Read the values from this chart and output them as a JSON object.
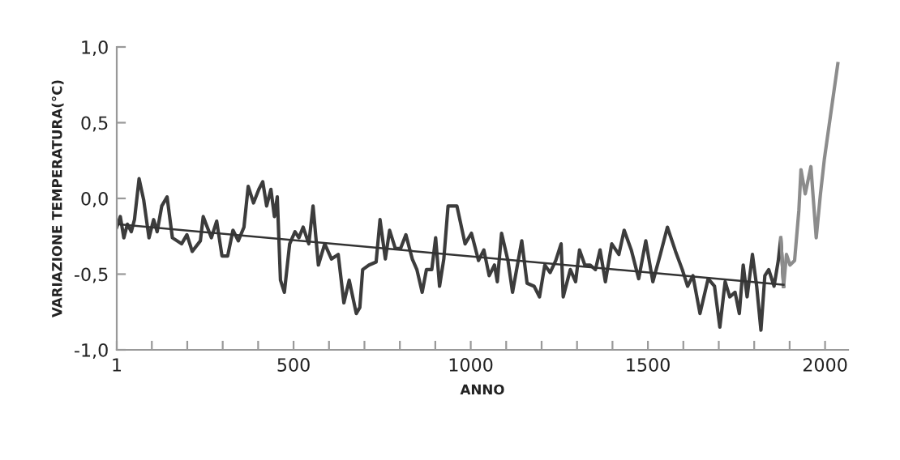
{
  "chart_data": {
    "type": "line",
    "xlabel": "ANNO",
    "ylabel": "VARIAZIONE TEMPERATURA(°C)",
    "xlim": [
      1,
      2065
    ],
    "ylim": [
      -1.0,
      1.0
    ],
    "xticks": [
      1,
      {
        "value": 100,
        "label": null
      },
      {
        "value": 200,
        "label": null
      },
      {
        "value": 300,
        "label": null
      },
      {
        "value": 400,
        "label": null
      },
      500,
      {
        "value": 600,
        "label": null
      },
      {
        "value": 700,
        "label": null
      },
      {
        "value": 800,
        "label": null
      },
      {
        "value": 900,
        "label": null
      },
      1000,
      {
        "value": 1100,
        "label": null
      },
      {
        "value": 1200,
        "label": null
      },
      {
        "value": 1300,
        "label": null
      },
      {
        "value": 1400,
        "label": null
      },
      1500,
      {
        "value": 1600,
        "label": null
      },
      {
        "value": 1700,
        "label": null
      },
      {
        "value": 1800,
        "label": null
      },
      {
        "value": 1900,
        "label": null
      },
      2000
    ],
    "yticks": [
      {
        "value": -1.0,
        "label": "-1,0"
      },
      {
        "value": -0.5,
        "label": "-0,5"
      },
      {
        "value": 0.0,
        "label": "0,0"
      },
      {
        "value": 0.5,
        "label": "0,5"
      },
      {
        "value": 1.0,
        "label": "1,0"
      }
    ],
    "grid": false,
    "marker": "none",
    "line_style": "solid",
    "series": [
      {
        "color": "#3c3c3c",
        "x": [
          1,
          11,
          21,
          31,
          42,
          51,
          64,
          77,
          92,
          105,
          115,
          128,
          143,
          158,
          184,
          199,
          214,
          237,
          245,
          268,
          283,
          298,
          314,
          329,
          344,
          360,
          372,
          387,
          402,
          413,
          424,
          436,
          446,
          454,
          463,
          474,
          489,
          504,
          515,
          527,
          543,
          555,
          570,
          588,
          607,
          626,
          642,
          657,
          677,
          687,
          695,
          713,
          733,
          744,
          759,
          771,
          787,
          802,
          817,
          835,
          848,
          863,
          875,
          890,
          901,
          912,
          924,
          936,
          961,
          984,
          1002,
          1022,
          1037,
          1052,
          1067,
          1075,
          1087,
          1105,
          1118,
          1144,
          1159,
          1179,
          1194,
          1209,
          1224,
          1240,
          1255,
          1261,
          1281,
          1296,
          1307,
          1322,
          1337,
          1352,
          1365,
          1380,
          1398,
          1418,
          1433,
          1453,
          1474,
          1494,
          1514,
          1535,
          1555,
          1578,
          1597,
          1612,
          1627,
          1647,
          1670,
          1688,
          1703,
          1718,
          1731,
          1746,
          1758,
          1769,
          1780,
          1795,
          1807,
          1819,
          1830,
          1841,
          1856,
          1868,
          1875,
          1883
        ],
        "values": [
          -0.19,
          -0.12,
          -0.26,
          -0.17,
          -0.22,
          -0.14,
          0.13,
          -0.01,
          -0.26,
          -0.14,
          -0.22,
          -0.05,
          0.01,
          -0.26,
          -0.3,
          -0.24,
          -0.35,
          -0.28,
          -0.12,
          -0.26,
          -0.15,
          -0.38,
          -0.38,
          -0.21,
          -0.28,
          -0.19,
          0.08,
          -0.03,
          0.06,
          0.11,
          -0.05,
          0.06,
          -0.12,
          0.01,
          -0.54,
          -0.62,
          -0.3,
          -0.22,
          -0.26,
          -0.19,
          -0.3,
          -0.05,
          -0.44,
          -0.3,
          -0.4,
          -0.37,
          -0.69,
          -0.54,
          -0.76,
          -0.72,
          -0.47,
          -0.44,
          -0.42,
          -0.14,
          -0.4,
          -0.21,
          -0.33,
          -0.33,
          -0.24,
          -0.4,
          -0.47,
          -0.62,
          -0.47,
          -0.47,
          -0.26,
          -0.58,
          -0.4,
          -0.05,
          -0.05,
          -0.3,
          -0.23,
          -0.41,
          -0.34,
          -0.51,
          -0.44,
          -0.55,
          -0.23,
          -0.41,
          -0.62,
          -0.28,
          -0.56,
          -0.58,
          -0.65,
          -0.44,
          -0.49,
          -0.41,
          -0.3,
          -0.65,
          -0.47,
          -0.55,
          -0.34,
          -0.44,
          -0.44,
          -0.47,
          -0.34,
          -0.55,
          -0.3,
          -0.37,
          -0.21,
          -0.34,
          -0.53,
          -0.28,
          -0.55,
          -0.37,
          -0.19,
          -0.35,
          -0.47,
          -0.58,
          -0.51,
          -0.76,
          -0.53,
          -0.58,
          -0.85,
          -0.55,
          -0.65,
          -0.62,
          -0.76,
          -0.44,
          -0.65,
          -0.37,
          -0.58,
          -0.87,
          -0.51,
          -0.47,
          -0.58,
          -0.41,
          -0.26,
          -0.58
        ]
      },
      {
        "color": "#8c8c8c",
        "x": [
          1875,
          1883,
          1891,
          1901,
          1914,
          1926,
          1932,
          1944,
          1960,
          1975,
          1987,
          1998,
          2036
        ],
        "values": [
          -0.26,
          -0.58,
          -0.37,
          -0.44,
          -0.41,
          -0.08,
          0.19,
          0.03,
          0.21,
          -0.26,
          0.03,
          0.26,
          0.89
        ]
      },
      {
        "color": "#333333",
        "x": [
          1,
          1883
        ],
        "values": [
          -0.17,
          -0.57
        ]
      }
    ]
  }
}
